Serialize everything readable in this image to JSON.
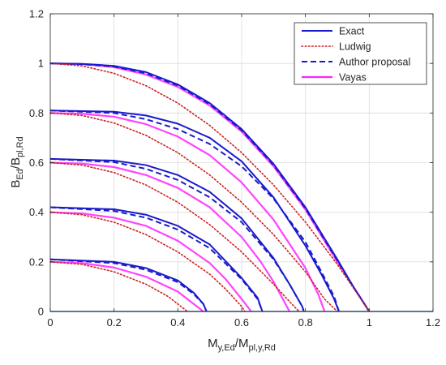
{
  "chart_data": {
    "type": "line",
    "xlabel": "M",
    "xlabel_sub": "y,Ed",
    "xlabel_mid": "/M",
    "xlabel_sub2": "pl,y,Rd",
    "ylabel": "B",
    "ylabel_sub": "Ed",
    "ylabel_mid": "/B",
    "ylabel_sub2": "pl,Rd",
    "xlim": [
      0,
      1.2
    ],
    "ylim": [
      0,
      1.2
    ],
    "xticks": [
      "0",
      "0.2",
      "0.4",
      "0.6",
      "0.8",
      "1",
      "1.2"
    ],
    "yticks": [
      "0",
      "0.2",
      "0.4",
      "0.6",
      "0.8",
      "1",
      "1.2"
    ],
    "grid": true,
    "legend_position": "top-right",
    "legend": [
      "Exact",
      "Ludwig",
      "Author proposal",
      "Vayas"
    ],
    "colors": {
      "Exact": "#1a1acc",
      "Ludwig": "#cc2222",
      "Author proposal": "#1a1acc",
      "Vayas": "#ff22ff"
    },
    "series": [
      {
        "name": "Vayas",
        "style": "solid",
        "curves": [
          [
            [
              0,
              1.0
            ],
            [
              0.1,
              0.997
            ],
            [
              0.2,
              0.985
            ],
            [
              0.3,
              0.955
            ],
            [
              0.4,
              0.905
            ],
            [
              0.5,
              0.83
            ],
            [
              0.6,
              0.725
            ],
            [
              0.7,
              0.585
            ],
            [
              0.8,
              0.41
            ],
            [
              0.9,
              0.2
            ],
            [
              0.95,
              0.1
            ],
            [
              1.0,
              0.0
            ]
          ],
          [
            [
              0,
              0.8
            ],
            [
              0.1,
              0.797
            ],
            [
              0.2,
              0.785
            ],
            [
              0.3,
              0.755
            ],
            [
              0.4,
              0.705
            ],
            [
              0.5,
              0.63
            ],
            [
              0.6,
              0.52
            ],
            [
              0.7,
              0.37
            ],
            [
              0.8,
              0.175
            ],
            [
              0.84,
              0.07
            ],
            [
              0.86,
              0.0
            ]
          ],
          [
            [
              0,
              0.6
            ],
            [
              0.1,
              0.596
            ],
            [
              0.2,
              0.582
            ],
            [
              0.3,
              0.55
            ],
            [
              0.4,
              0.498
            ],
            [
              0.5,
              0.42
            ],
            [
              0.6,
              0.3
            ],
            [
              0.66,
              0.2
            ],
            [
              0.7,
              0.12
            ],
            [
              0.75,
              0.0
            ]
          ],
          [
            [
              0,
              0.4
            ],
            [
              0.1,
              0.395
            ],
            [
              0.2,
              0.378
            ],
            [
              0.3,
              0.345
            ],
            [
              0.4,
              0.285
            ],
            [
              0.5,
              0.195
            ],
            [
              0.55,
              0.13
            ],
            [
              0.6,
              0.05
            ],
            [
              0.63,
              0.0
            ]
          ],
          [
            [
              0,
              0.2
            ],
            [
              0.1,
              0.195
            ],
            [
              0.2,
              0.177
            ],
            [
              0.3,
              0.14
            ],
            [
              0.4,
              0.08
            ],
            [
              0.45,
              0.03
            ],
            [
              0.48,
              0.0
            ]
          ]
        ]
      },
      {
        "name": "Exact",
        "style": "solid",
        "curves": [
          [
            [
              0,
              1.0
            ],
            [
              0.1,
              0.998
            ],
            [
              0.2,
              0.99
            ],
            [
              0.3,
              0.965
            ],
            [
              0.4,
              0.915
            ],
            [
              0.5,
              0.84
            ],
            [
              0.6,
              0.735
            ],
            [
              0.7,
              0.595
            ],
            [
              0.8,
              0.42
            ],
            [
              0.9,
              0.21
            ],
            [
              0.95,
              0.1
            ],
            [
              1.0,
              0.0
            ]
          ],
          [
            [
              0,
              0.81
            ],
            [
              0.2,
              0.805
            ],
            [
              0.3,
              0.79
            ],
            [
              0.4,
              0.757
            ],
            [
              0.5,
              0.7
            ],
            [
              0.6,
              0.605
            ],
            [
              0.7,
              0.46
            ],
            [
              0.8,
              0.265
            ],
            [
              0.85,
              0.15
            ],
            [
              0.89,
              0.05
            ],
            [
              0.905,
              0.0
            ]
          ],
          [
            [
              0,
              0.615
            ],
            [
              0.2,
              0.608
            ],
            [
              0.3,
              0.59
            ],
            [
              0.4,
              0.55
            ],
            [
              0.5,
              0.482
            ],
            [
              0.6,
              0.375
            ],
            [
              0.7,
              0.215
            ],
            [
              0.75,
              0.11
            ],
            [
              0.79,
              0.02
            ],
            [
              0.795,
              0.0
            ]
          ],
          [
            [
              0,
              0.42
            ],
            [
              0.2,
              0.412
            ],
            [
              0.3,
              0.39
            ],
            [
              0.4,
              0.345
            ],
            [
              0.5,
              0.27
            ],
            [
              0.6,
              0.135
            ],
            [
              0.65,
              0.055
            ],
            [
              0.665,
              0.0
            ]
          ],
          [
            [
              0,
              0.21
            ],
            [
              0.2,
              0.2
            ],
            [
              0.3,
              0.175
            ],
            [
              0.4,
              0.125
            ],
            [
              0.45,
              0.075
            ],
            [
              0.48,
              0.03
            ],
            [
              0.49,
              0.0
            ]
          ]
        ]
      },
      {
        "name": "Author proposal",
        "style": "dashed",
        "curves": [
          [
            [
              0,
              1.0
            ],
            [
              0.1,
              0.997
            ],
            [
              0.2,
              0.987
            ],
            [
              0.3,
              0.96
            ],
            [
              0.4,
              0.91
            ],
            [
              0.5,
              0.835
            ],
            [
              0.6,
              0.73
            ],
            [
              0.7,
              0.59
            ],
            [
              0.8,
              0.415
            ],
            [
              0.9,
              0.205
            ],
            [
              0.95,
              0.1
            ],
            [
              1.0,
              0.0
            ]
          ],
          [
            [
              0,
              0.81
            ],
            [
              0.2,
              0.8
            ],
            [
              0.3,
              0.775
            ],
            [
              0.4,
              0.735
            ],
            [
              0.5,
              0.675
            ],
            [
              0.6,
              0.585
            ],
            [
              0.7,
              0.455
            ],
            [
              0.8,
              0.28
            ],
            [
              0.85,
              0.16
            ],
            [
              0.89,
              0.06
            ],
            [
              0.905,
              0.0
            ]
          ],
          [
            [
              0,
              0.615
            ],
            [
              0.2,
              0.602
            ],
            [
              0.3,
              0.575
            ],
            [
              0.4,
              0.53
            ],
            [
              0.5,
              0.46
            ],
            [
              0.6,
              0.36
            ],
            [
              0.7,
              0.21
            ],
            [
              0.75,
              0.11
            ],
            [
              0.79,
              0.02
            ],
            [
              0.795,
              0.0
            ]
          ],
          [
            [
              0,
              0.42
            ],
            [
              0.2,
              0.405
            ],
            [
              0.3,
              0.378
            ],
            [
              0.4,
              0.33
            ],
            [
              0.5,
              0.255
            ],
            [
              0.6,
              0.13
            ],
            [
              0.65,
              0.05
            ],
            [
              0.665,
              0.0
            ]
          ],
          [
            [
              0,
              0.21
            ],
            [
              0.2,
              0.195
            ],
            [
              0.3,
              0.168
            ],
            [
              0.4,
              0.118
            ],
            [
              0.45,
              0.07
            ],
            [
              0.48,
              0.03
            ],
            [
              0.49,
              0.0
            ]
          ]
        ]
      },
      {
        "name": "Ludwig",
        "style": "dotted",
        "curves": [
          [
            [
              0,
              1.0
            ],
            [
              0.1,
              0.99
            ],
            [
              0.2,
              0.96
            ],
            [
              0.3,
              0.91
            ],
            [
              0.4,
              0.84
            ],
            [
              0.5,
              0.75
            ],
            [
              0.6,
              0.64
            ],
            [
              0.7,
              0.51
            ],
            [
              0.8,
              0.36
            ],
            [
              0.9,
              0.19
            ],
            [
              1.0,
              0.0
            ]
          ],
          [
            [
              0,
              0.8
            ],
            [
              0.1,
              0.79
            ],
            [
              0.2,
              0.76
            ],
            [
              0.3,
              0.71
            ],
            [
              0.4,
              0.64
            ],
            [
              0.5,
              0.55
            ],
            [
              0.6,
              0.44
            ],
            [
              0.7,
              0.31
            ],
            [
              0.8,
              0.16
            ],
            [
              0.86,
              0.05
            ],
            [
              0.9,
              0.0
            ]
          ],
          [
            [
              0,
              0.6
            ],
            [
              0.1,
              0.59
            ],
            [
              0.2,
              0.56
            ],
            [
              0.3,
              0.51
            ],
            [
              0.4,
              0.44
            ],
            [
              0.5,
              0.35
            ],
            [
              0.6,
              0.24
            ],
            [
              0.7,
              0.11
            ],
            [
              0.75,
              0.04
            ],
            [
              0.78,
              0.0
            ]
          ],
          [
            [
              0,
              0.4
            ],
            [
              0.1,
              0.39
            ],
            [
              0.2,
              0.36
            ],
            [
              0.3,
              0.31
            ],
            [
              0.4,
              0.24
            ],
            [
              0.5,
              0.15
            ],
            [
              0.55,
              0.09
            ],
            [
              0.6,
              0.02
            ],
            [
              0.61,
              0.0
            ]
          ],
          [
            [
              0,
              0.2
            ],
            [
              0.1,
              0.19
            ],
            [
              0.2,
              0.16
            ],
            [
              0.3,
              0.11
            ],
            [
              0.37,
              0.06
            ],
            [
              0.42,
              0.01
            ],
            [
              0.43,
              0.0
            ]
          ]
        ]
      }
    ]
  }
}
